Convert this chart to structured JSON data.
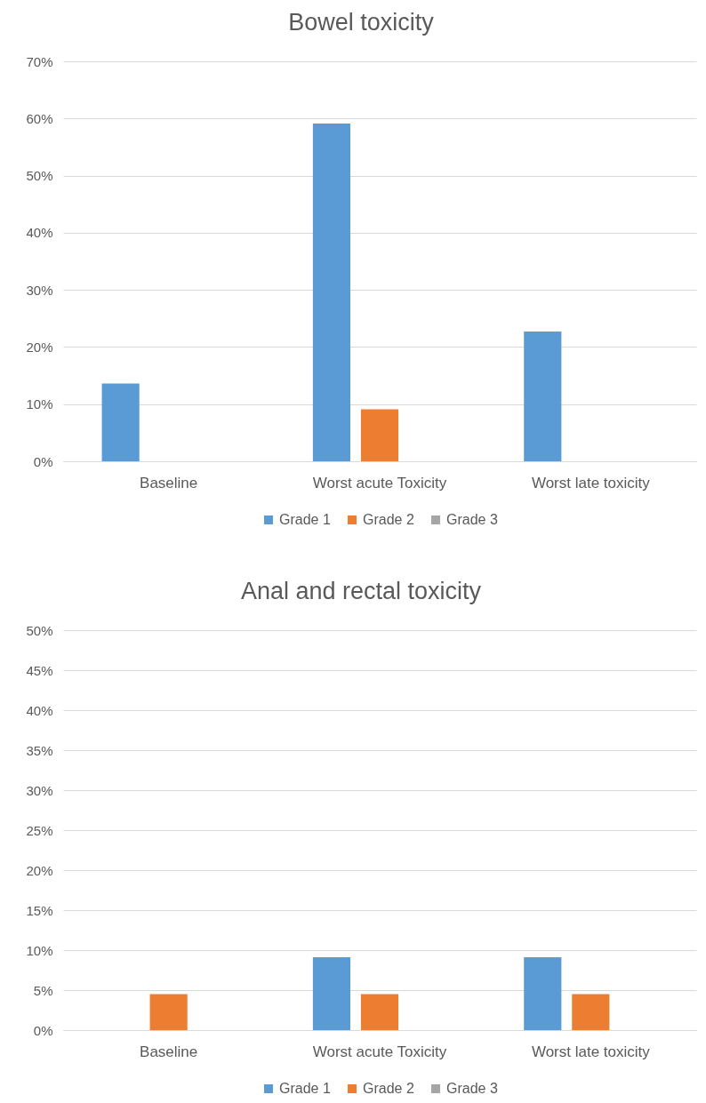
{
  "chart_data": [
    {
      "type": "bar",
      "title": "Bowel toxicity",
      "categories": [
        "Baseline",
        "Worst acute Toxicity",
        "Worst late toxicity"
      ],
      "series": [
        {
          "name": "Grade 1",
          "color": "#5b9bd5",
          "values": [
            13.6,
            59.1,
            22.7
          ]
        },
        {
          "name": "Grade 2",
          "color": "#ed7d31",
          "values": [
            0,
            9.1,
            0
          ]
        },
        {
          "name": "Grade 3",
          "color": "#a5a5a5",
          "values": [
            0,
            0,
            0
          ]
        }
      ],
      "ylim": [
        0,
        70
      ],
      "yticks": [
        {
          "value": 0,
          "label": "0%"
        },
        {
          "value": 10,
          "label": "10%"
        },
        {
          "value": 20,
          "label": "20%"
        },
        {
          "value": 30,
          "label": "30%"
        },
        {
          "value": 40,
          "label": "40%"
        },
        {
          "value": 50,
          "label": "50%"
        },
        {
          "value": 60,
          "label": "60%"
        },
        {
          "value": 70,
          "label": "70%"
        }
      ],
      "grid": "y",
      "legend": "bottom"
    },
    {
      "type": "bar",
      "title": "Anal and rectal toxicity",
      "categories": [
        "Baseline",
        "Worst acute Toxicity",
        "Worst late toxicity"
      ],
      "series": [
        {
          "name": "Grade 1",
          "color": "#5b9bd5",
          "values": [
            0,
            9.1,
            9.1
          ]
        },
        {
          "name": "Grade 2",
          "color": "#ed7d31",
          "values": [
            4.5,
            4.5,
            4.5
          ]
        },
        {
          "name": "Grade 3",
          "color": "#a5a5a5",
          "values": [
            0,
            0,
            0
          ]
        }
      ],
      "ylim": [
        0,
        50
      ],
      "yticks": [
        {
          "value": 0,
          "label": "0%"
        },
        {
          "value": 5,
          "label": "5%"
        },
        {
          "value": 10,
          "label": "10%"
        },
        {
          "value": 15,
          "label": "15%"
        },
        {
          "value": 20,
          "label": "20%"
        },
        {
          "value": 25,
          "label": "25%"
        },
        {
          "value": 30,
          "label": "30%"
        },
        {
          "value": 35,
          "label": "35%"
        },
        {
          "value": 40,
          "label": "40%"
        },
        {
          "value": 45,
          "label": "45%"
        },
        {
          "value": 50,
          "label": "50%"
        }
      ],
      "grid": "y",
      "legend": "bottom"
    }
  ]
}
